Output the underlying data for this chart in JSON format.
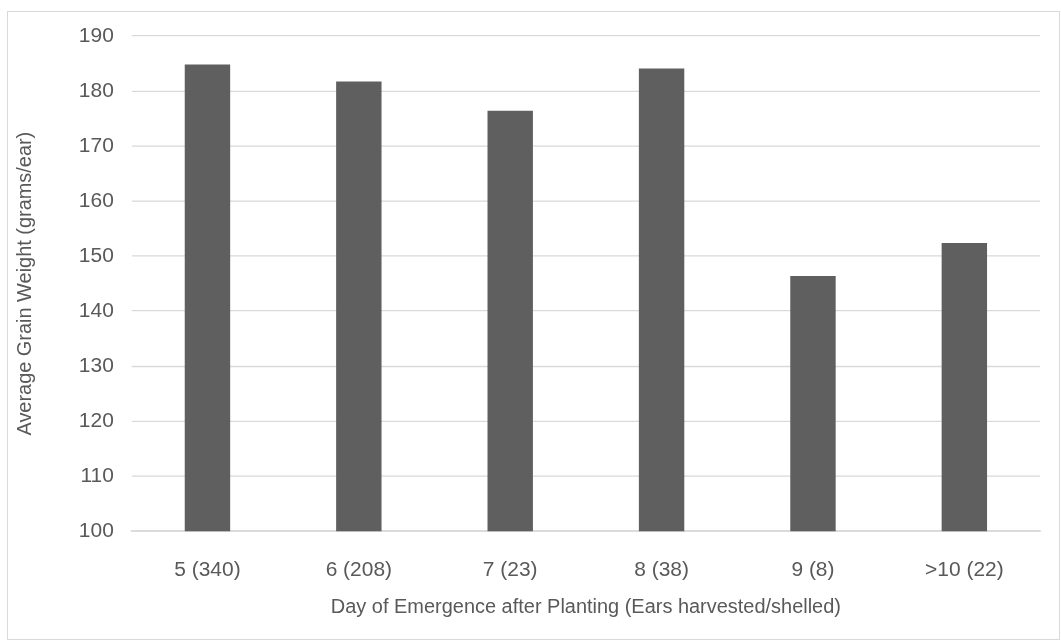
{
  "chart_data": {
    "type": "bar",
    "xlabel": "Day of Emergence after Planting (Ears harvested/shelled)",
    "ylabel": "Average Grain Weight (grams/ear)",
    "categories": [
      "5 (340)",
      "6 (208)",
      "7 (23)",
      "8 (38)",
      "9 (8)",
      ">10 (22)"
    ],
    "values": [
      184.8,
      181.7,
      176.4,
      184.1,
      146.4,
      152.4
    ],
    "color": "#5f5f5f",
    "ylim": [
      100,
      190
    ],
    "yticks": [
      100,
      110,
      120,
      130,
      140,
      150,
      160,
      170,
      180,
      190
    ],
    "grid": "y"
  }
}
